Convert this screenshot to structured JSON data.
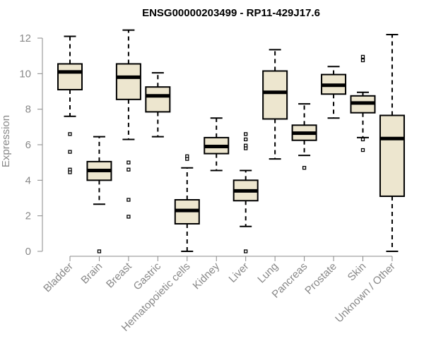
{
  "chart_data": {
    "type": "boxplot",
    "title": "ENSG00000203499 - RP11-429J17.6",
    "xlabel": "",
    "ylabel": "Expression",
    "ylim": [
      0,
      12
    ],
    "yticks": [
      0,
      2,
      4,
      6,
      8,
      10,
      12
    ],
    "categories": [
      "Bladder",
      "Brain",
      "Breast",
      "Gastric",
      "Hematopoietic cells",
      "Kidney",
      "Liver",
      "Lung",
      "Pancreas",
      "Prostate",
      "Skin",
      "Unknown / Other"
    ],
    "boxes": [
      {
        "whisker_low": 7.6,
        "q1": 9.1,
        "median": 10.1,
        "q3": 10.55,
        "whisker_high": 12.1,
        "outliers": [
          6.6,
          5.6,
          4.6,
          4.45
        ]
      },
      {
        "whisker_low": 2.65,
        "q1": 4.0,
        "median": 4.55,
        "q3": 5.05,
        "whisker_high": 6.45,
        "outliers": [
          0.0
        ]
      },
      {
        "whisker_low": 6.3,
        "q1": 8.55,
        "median": 9.8,
        "q3": 10.55,
        "whisker_high": 12.45,
        "outliers": [
          5.0,
          4.6,
          2.9,
          1.95
        ]
      },
      {
        "whisker_low": 6.45,
        "q1": 7.85,
        "median": 8.75,
        "q3": 9.25,
        "whisker_high": 10.05,
        "outliers": []
      },
      {
        "whisker_low": 0.0,
        "q1": 1.55,
        "median": 2.3,
        "q3": 2.9,
        "whisker_high": 4.7,
        "outliers": [
          5.35,
          5.2
        ]
      },
      {
        "whisker_low": 4.55,
        "q1": 5.5,
        "median": 5.9,
        "q3": 6.4,
        "whisker_high": 7.5,
        "outliers": []
      },
      {
        "whisker_low": 1.4,
        "q1": 2.85,
        "median": 3.4,
        "q3": 4.0,
        "whisker_high": 4.55,
        "outliers": [
          6.6,
          6.3,
          5.95,
          5.8,
          0.0
        ]
      },
      {
        "whisker_low": 5.2,
        "q1": 7.45,
        "median": 8.95,
        "q3": 10.15,
        "whisker_high": 11.35,
        "outliers": []
      },
      {
        "whisker_low": 5.4,
        "q1": 6.25,
        "median": 6.65,
        "q3": 7.1,
        "whisker_high": 8.3,
        "outliers": [
          4.7
        ]
      },
      {
        "whisker_low": 7.5,
        "q1": 8.85,
        "median": 9.35,
        "q3": 9.95,
        "whisker_high": 10.4,
        "outliers": []
      },
      {
        "whisker_low": 6.4,
        "q1": 7.8,
        "median": 8.35,
        "q3": 8.75,
        "whisker_high": 8.95,
        "outliers": [
          10.95,
          10.75,
          6.3,
          5.7
        ]
      },
      {
        "whisker_low": 0.0,
        "q1": 3.1,
        "median": 6.35,
        "q3": 7.65,
        "whisker_high": 12.2,
        "outliers": []
      }
    ],
    "box_fill": "#ede6cf",
    "box_stroke": "#000000",
    "axis_color": "#888888"
  }
}
